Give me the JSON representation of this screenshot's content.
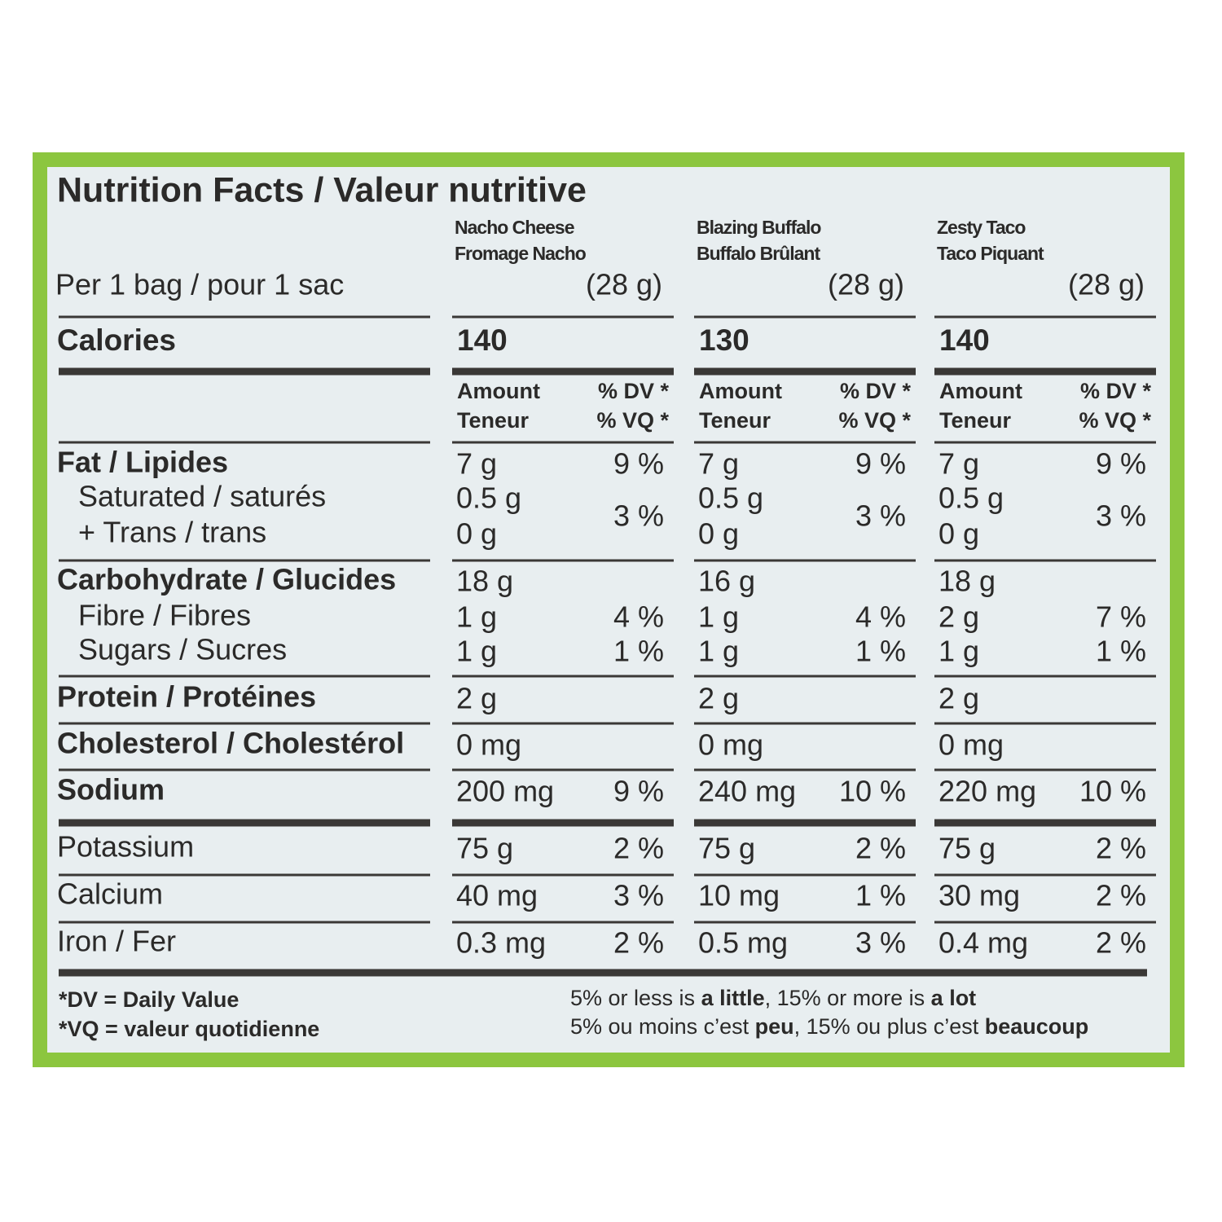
{
  "title": "Nutrition Facts / Valeur nutritive",
  "serving": "Per 1 bag / pour 1 sac",
  "products": [
    {
      "name": [
        "Nacho Cheese",
        "Fromage Nacho"
      ],
      "size": "(28 g)",
      "calories": "140"
    },
    {
      "name": [
        "Blazing Buffalo",
        "Buffalo Brûlant"
      ],
      "size": "(28 g)",
      "calories": "130"
    },
    {
      "name": [
        "Zesty Taco",
        "Taco Piquant"
      ],
      "size": "(28 g)",
      "calories": "140"
    }
  ],
  "calories_label": "Calories",
  "column_header": {
    "amount": [
      "Amount",
      "Teneur"
    ],
    "dv": [
      "% DV *",
      "% VQ *"
    ]
  },
  "sections": [
    [
      {
        "label": "Fat / Lipides",
        "values": [
          [
            "7 g",
            "9 %"
          ],
          [
            "7 g",
            "9 %"
          ],
          [
            "7 g",
            "9 %"
          ]
        ]
      },
      {
        "label": "Saturated / saturés",
        "values": [
          [
            "0.5 g",
            "3 %"
          ],
          [
            "0.5 g",
            "3 %"
          ],
          [
            "0.5 g",
            "3 %"
          ]
        ]
      },
      {
        "label": "+ Trans / trans",
        "values": [
          [
            "0 g"
          ],
          [
            "0 g"
          ],
          [
            "0 g"
          ]
        ]
      }
    ],
    [
      {
        "label": "Carbohydrate / Glucides",
        "values": [
          [
            "18 g"
          ],
          [
            "16 g"
          ],
          [
            "18 g"
          ]
        ]
      },
      {
        "label": "Fibre / Fibres",
        "values": [
          [
            "1 g",
            "4 %"
          ],
          [
            "1 g",
            "4 %"
          ],
          [
            "2 g",
            "7 %"
          ]
        ]
      },
      {
        "label": "Sugars / Sucres",
        "values": [
          [
            "1 g",
            "1 %"
          ],
          [
            "1 g",
            "1 %"
          ],
          [
            "1 g",
            "1 %"
          ]
        ]
      }
    ],
    [
      {
        "label": "Protein / Protéines",
        "values": [
          [
            "2 g"
          ],
          [
            "2 g"
          ],
          [
            "2 g"
          ]
        ]
      }
    ],
    [
      {
        "label": "Cholesterol / Cholestérol",
        "values": [
          [
            "0 mg"
          ],
          [
            "0 mg"
          ],
          [
            "0 mg"
          ]
        ]
      }
    ],
    [
      {
        "label": "Sodium",
        "values": [
          [
            "200 mg",
            "9 %"
          ],
          [
            "240 mg",
            "10 %"
          ],
          [
            "220 mg",
            "10 %"
          ]
        ]
      }
    ],
    [
      {
        "label": "Potassium",
        "values": [
          [
            "75 g",
            "2 %"
          ],
          [
            "75 g",
            "2 %"
          ],
          [
            "75 g",
            "2 %"
          ]
        ]
      }
    ],
    [
      {
        "label": "Calcium",
        "values": [
          [
            "40 mg",
            "3 %"
          ],
          [
            "10 mg",
            "1 %"
          ],
          [
            "30 mg",
            "2 %"
          ]
        ]
      }
    ],
    [
      {
        "label": "Iron / Fer",
        "values": [
          [
            "0.3 mg",
            "2 %"
          ],
          [
            "0.5 mg",
            "3 %"
          ],
          [
            "0.4 mg",
            "2 %"
          ]
        ]
      }
    ]
  ],
  "footnotes": {
    "left": [
      "*DV = Daily Value",
      "*VQ = valeur quotidienne"
    ],
    "right": [
      [
        "5% or less is ",
        "a little",
        ", 15% or more is ",
        "a lot"
      ],
      [
        "5% ou moins c’est ",
        "peu",
        ", 15% ou plus c’est ",
        "beaucoup"
      ]
    ]
  }
}
